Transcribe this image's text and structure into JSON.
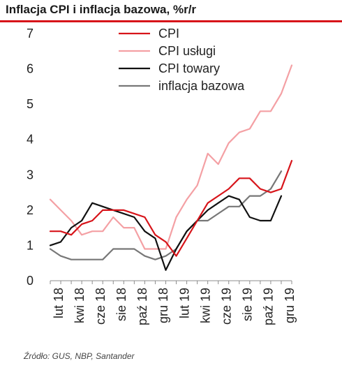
{
  "title": "Inflacja CPI i inflacja bazowa, %r/r",
  "source": "Źródło: GUS, NBP, Santander",
  "colors": {
    "accent": "#d7141a"
  },
  "chart_data": {
    "type": "line",
    "x": [
      "sty 18",
      "lut 18",
      "mar 18",
      "kwi 18",
      "maj 18",
      "cze 18",
      "lip 18",
      "sie 18",
      "wrz 18",
      "paź 18",
      "lis 18",
      "gru 18",
      "sty 19",
      "lut 19",
      "mar 19",
      "kwi 19",
      "maj 19",
      "cze 19",
      "lip 19",
      "sie 19",
      "wrz 19",
      "paź 19",
      "lis 19",
      "gru 19"
    ],
    "tick_labels": [
      "lut 18",
      "kwi 18",
      "cze 18",
      "sie 18",
      "paź 18",
      "gru 18",
      "lut 19",
      "kwi 19",
      "cze 19",
      "sie 19",
      "paź 19",
      "gru 19"
    ],
    "tick_indices": [
      1,
      3,
      5,
      7,
      9,
      11,
      13,
      15,
      17,
      19,
      21,
      23
    ],
    "ylim": [
      0,
      7
    ],
    "yticks": [
      0,
      1,
      2,
      3,
      4,
      5,
      6,
      7
    ],
    "legend_position": "top-right",
    "series": [
      {
        "name": "CPI",
        "color": "#d7141a",
        "values": [
          1.4,
          1.4,
          1.3,
          1.6,
          1.7,
          2.0,
          2.0,
          2.0,
          1.9,
          1.8,
          1.3,
          1.1,
          0.7,
          1.2,
          1.7,
          2.2,
          2.4,
          2.6,
          2.9,
          2.9,
          2.6,
          2.5,
          2.6,
          3.4
        ]
      },
      {
        "name": "CPI usługi",
        "color": "#f4a0a4",
        "values": [
          2.3,
          2.0,
          1.7,
          1.3,
          1.4,
          1.4,
          1.8,
          1.5,
          1.5,
          0.9,
          0.9,
          0.9,
          1.8,
          2.3,
          2.7,
          3.6,
          3.3,
          3.9,
          4.2,
          4.3,
          4.8,
          4.8,
          5.3,
          6.1
        ]
      },
      {
        "name": "CPI towary",
        "color": "#111111",
        "values": [
          1.0,
          1.1,
          1.5,
          1.7,
          2.2,
          2.1,
          2.0,
          1.9,
          1.8,
          1.4,
          1.2,
          0.3,
          0.9,
          1.4,
          1.7,
          2.0,
          2.2,
          2.4,
          2.3,
          1.8,
          1.7,
          1.7,
          2.4,
          null
        ]
      },
      {
        "name": "inflacja bazowa",
        "color": "#777777",
        "values": [
          0.9,
          0.7,
          0.6,
          0.6,
          0.6,
          0.6,
          0.9,
          0.9,
          0.9,
          0.7,
          0.6,
          0.7,
          0.9,
          1.4,
          1.7,
          1.7,
          1.9,
          2.1,
          2.1,
          2.4,
          2.4,
          2.6,
          3.1,
          null
        ]
      }
    ]
  }
}
